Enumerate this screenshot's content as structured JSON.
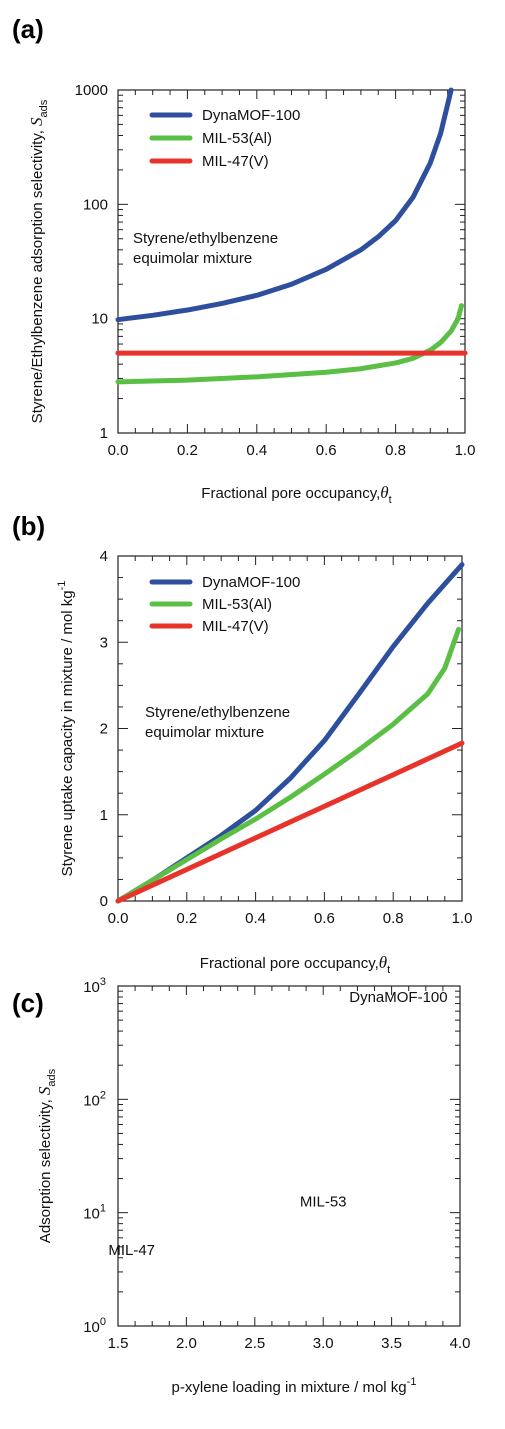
{
  "chart_data": [
    {
      "panel": "(a)",
      "type": "line",
      "ylog": true,
      "xlim": [
        0,
        1
      ],
      "ylim": [
        1,
        1000
      ],
      "xticks": [
        "0.0",
        "0.2",
        "0.4",
        "0.6",
        "0.8",
        "1.0"
      ],
      "yticks": [
        "1",
        "10",
        "100",
        "1000"
      ],
      "xlabel": "Fractional pore occupancy,",
      "xlabel_sym": "θ",
      "xlabel_sub": "t",
      "ylabel": "Styrene/Ethylbenzene adsorption selectivity,",
      "ylabel_sym": "S",
      "ylabel_sub": "ads",
      "annotation": [
        "Styrene/ethylbenzene",
        "equimolar mixture"
      ],
      "legend": "top-left",
      "series": [
        {
          "name": "DynaMOF-100",
          "color": "#2e4f9e",
          "x": [
            0,
            0.1,
            0.2,
            0.3,
            0.4,
            0.5,
            0.6,
            0.7,
            0.75,
            0.8,
            0.85,
            0.9,
            0.93,
            0.96
          ],
          "y": [
            9.8,
            10.7,
            11.9,
            13.6,
            16,
            20,
            27,
            40,
            52,
            72,
            115,
            230,
            420,
            1000
          ]
        },
        {
          "name": "MIL-53(Al)",
          "color": "#5bbf45",
          "x": [
            0,
            0.2,
            0.4,
            0.6,
            0.7,
            0.8,
            0.85,
            0.9,
            0.93,
            0.96,
            0.98,
            0.99
          ],
          "y": [
            2.8,
            2.9,
            3.1,
            3.4,
            3.65,
            4.1,
            4.5,
            5.3,
            6.2,
            7.8,
            10,
            13
          ]
        },
        {
          "name": "MIL-47(V)",
          "color": "#e8332a",
          "x": [
            0,
            1
          ],
          "y": [
            5,
            5
          ]
        }
      ]
    },
    {
      "panel": "(b)",
      "type": "line",
      "ylog": false,
      "xlim": [
        0,
        1
      ],
      "ylim": [
        0,
        4
      ],
      "xticks": [
        "0.0",
        "0.2",
        "0.4",
        "0.6",
        "0.8",
        "1.0"
      ],
      "yticks": [
        "0",
        "1",
        "2",
        "3",
        "4"
      ],
      "xlabel": "Fractional pore occupancy,",
      "xlabel_sym": "θ",
      "xlabel_sub": "t",
      "ylabel": "Styrene uptake capacity in mixture / mol kg",
      "ylabel_sup": "-1",
      "annotation": [
        "Styrene/ethylbenzene",
        "equimolar mixture"
      ],
      "legend": "top-left",
      "series": [
        {
          "name": "DynaMOF-100",
          "color": "#2e4f9e",
          "x": [
            0,
            0.1,
            0.2,
            0.3,
            0.4,
            0.5,
            0.6,
            0.7,
            0.8,
            0.9,
            1.0
          ],
          "y": [
            0,
            0.24,
            0.5,
            0.76,
            1.05,
            1.42,
            1.86,
            2.4,
            2.95,
            3.45,
            3.9
          ]
        },
        {
          "name": "MIL-53(Al)",
          "color": "#5bbf45",
          "x": [
            0,
            0.1,
            0.2,
            0.3,
            0.4,
            0.5,
            0.6,
            0.7,
            0.8,
            0.9,
            0.95,
            0.99
          ],
          "y": [
            0,
            0.24,
            0.48,
            0.72,
            0.95,
            1.2,
            1.47,
            1.75,
            2.05,
            2.4,
            2.7,
            3.15
          ]
        },
        {
          "name": "MIL-47(V)",
          "color": "#e8332a",
          "x": [
            0,
            1
          ],
          "y": [
            0,
            1.83
          ]
        }
      ]
    },
    {
      "panel": "(c)",
      "type": "scatter",
      "ylog": true,
      "xlim": [
        1.5,
        4.0
      ],
      "ylim": [
        1,
        1000
      ],
      "xticks": [
        "1.5",
        "2.0",
        "2.5",
        "3.0",
        "3.5",
        "4.0"
      ],
      "yticks": [
        {
          "base": "10",
          "exp": "0"
        },
        {
          "base": "10",
          "exp": "1"
        },
        {
          "base": "10",
          "exp": "2"
        },
        {
          "base": "10",
          "exp": "3"
        }
      ],
      "xlabel": "p-xylene loading in mixture / mol kg",
      "xlabel_sup": "-1",
      "ylabel": "Adsorption selectivity,",
      "ylabel_sym": "S",
      "ylabel_sub": "ads",
      "labels": [
        {
          "text": "DynaMOF-100",
          "x": 3.55,
          "y": 800
        },
        {
          "text": "MIL-53",
          "x": 3.0,
          "y": 12.5
        },
        {
          "text": "MIL-47",
          "x": 1.6,
          "y": 4.7
        }
      ]
    }
  ]
}
